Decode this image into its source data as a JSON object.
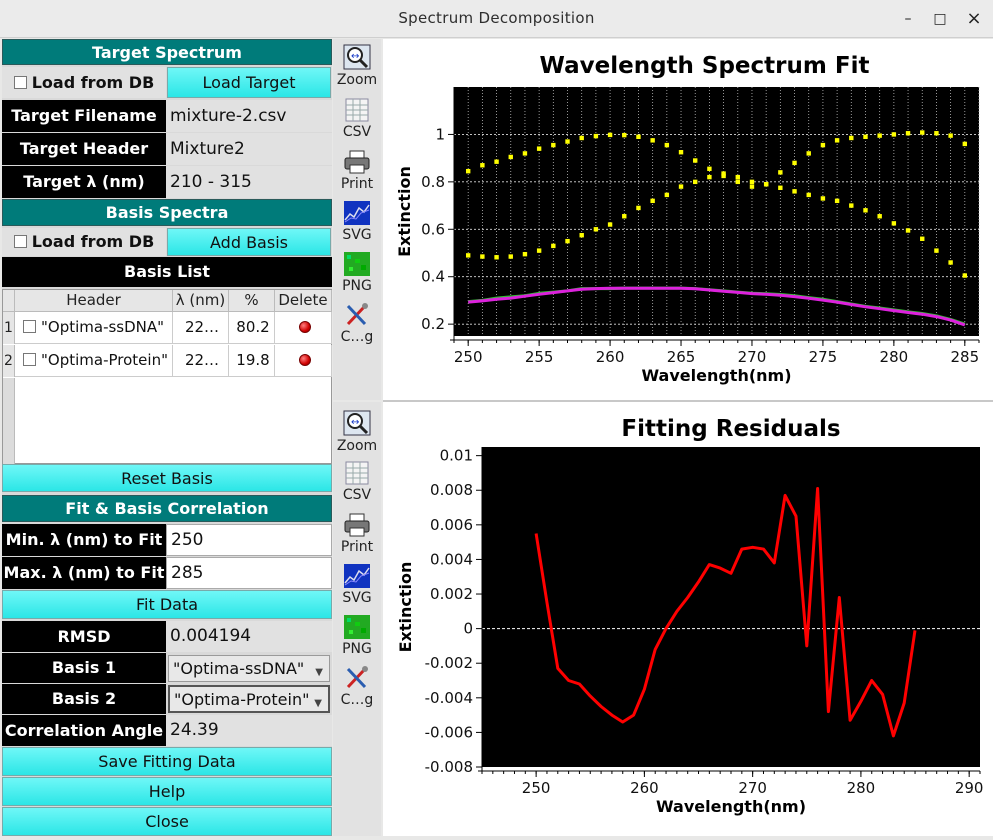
{
  "window": {
    "title": "Spectrum Decomposition",
    "minimize": "–",
    "maximize": "□",
    "close": "×"
  },
  "target": {
    "section_title": "Target Spectrum",
    "load_db_label": "Load from DB",
    "load_target_label": "Load Target",
    "filename_label": "Target Filename",
    "filename_value": "mixture-2.csv",
    "header_label": "Target Header",
    "header_value": "Mixture2",
    "range_label": "Target λ (nm)",
    "range_value": "210 - 315"
  },
  "basis": {
    "section_title": "Basis Spectra",
    "load_db_label": "Load from DB",
    "add_basis_label": "Add Basis",
    "list_title": "Basis List",
    "columns": [
      "Header",
      "λ (nm)",
      "%",
      "Delete"
    ],
    "rows": [
      {
        "index": "1",
        "header": "\"Optima-ssDNA\"",
        "range": "22…",
        "percent": "80.2"
      },
      {
        "index": "2",
        "header": "\"Optima-Protein\"",
        "range": "22…",
        "percent": "19.8"
      }
    ],
    "reset_label": "Reset Basis"
  },
  "fit": {
    "section_title": "Fit & Basis Correlation",
    "min_label": "Min. λ (nm) to Fit",
    "min_value": "250",
    "max_label": "Max. λ (nm) to Fit",
    "max_value": "285",
    "fit_button": "Fit Data",
    "rmsd_label": "RMSD",
    "rmsd_value": "0.004194",
    "basis1_label": "Basis 1",
    "basis1_value": "\"Optima-ssDNA\"",
    "basis2_label": "Basis 2",
    "basis2_value": "\"Optima-Protein\"",
    "angle_label": "Correlation Angle",
    "angle_value": "24.39",
    "save_button": "Save Fitting Data",
    "help_button": "Help",
    "close_button": "Close"
  },
  "toolbar": {
    "zoom": "Zoom",
    "csv": "CSV",
    "print": "Print",
    "svg": "SVG",
    "png": "PNG",
    "config": "C…g"
  },
  "colors": {
    "teal": "#007b7a",
    "cyan": "#33e8e8",
    "fit_line": "#dd22dd",
    "target_line": "#33bb33",
    "basis_points": "#ffff00",
    "residual_line": "#ff0000"
  },
  "chart_data": [
    {
      "type": "line",
      "title": "Wavelength Spectrum Fit",
      "xlabel": "Wavelength(nm)",
      "ylabel": "Extinction",
      "xlim": [
        249,
        286
      ],
      "ylim": [
        0.15,
        1.2
      ],
      "xticks": [
        250,
        255,
        260,
        265,
        270,
        275,
        280,
        285
      ],
      "yticks": [
        0.2,
        0.4,
        0.6,
        0.8,
        1
      ],
      "grid": true,
      "x": [
        250,
        251,
        252,
        253,
        254,
        255,
        256,
        257,
        258,
        259,
        260,
        261,
        262,
        263,
        264,
        265,
        266,
        267,
        268,
        269,
        270,
        271,
        272,
        273,
        274,
        275,
        276,
        277,
        278,
        279,
        280,
        281,
        282,
        283,
        284,
        285
      ],
      "series": [
        {
          "values": [
            0.845,
            0.87,
            0.885,
            0.905,
            0.92,
            0.94,
            0.955,
            0.97,
            0.985,
            0.993,
            0.998,
            0.997,
            0.99,
            0.975,
            0.955,
            0.925,
            0.89,
            0.855,
            0.825,
            0.8,
            0.78,
            0.79,
            0.84,
            0.88,
            0.92,
            0.955,
            0.975,
            0.985,
            0.99,
            0.995,
            1.0,
            1.005,
            1.008,
            1.005,
            0.995,
            0.96
          ],
          "style": "points"
        },
        {
          "values": [
            0.49,
            0.485,
            0.482,
            0.485,
            0.495,
            0.51,
            0.53,
            0.55,
            0.575,
            0.6,
            0.62,
            0.655,
            0.69,
            0.72,
            0.745,
            0.78,
            0.8,
            0.82,
            0.835,
            0.82,
            0.8,
            0.79,
            0.775,
            0.76,
            0.745,
            0.73,
            0.72,
            0.7,
            0.68,
            0.655,
            0.625,
            0.595,
            0.56,
            0.51,
            0.46,
            0.405
          ],
          "style": "points"
        },
        {
          "values": [
            0.295,
            0.3,
            0.31,
            0.315,
            0.32,
            0.33,
            0.335,
            0.34,
            0.35,
            0.35,
            0.35,
            0.352,
            0.352,
            0.352,
            0.352,
            0.352,
            0.35,
            0.345,
            0.34,
            0.335,
            0.33,
            0.328,
            0.325,
            0.32,
            0.312,
            0.305,
            0.295,
            0.285,
            0.275,
            0.268,
            0.26,
            0.252,
            0.245,
            0.235,
            0.22,
            0.2
          ],
          "style": "line",
          "color": "#33bb33"
        },
        {
          "values": [
            0.293,
            0.298,
            0.305,
            0.31,
            0.318,
            0.326,
            0.333,
            0.34,
            0.347,
            0.35,
            0.351,
            0.351,
            0.351,
            0.351,
            0.351,
            0.351,
            0.349,
            0.344,
            0.339,
            0.334,
            0.329,
            0.326,
            0.322,
            0.316,
            0.309,
            0.301,
            0.293,
            0.283,
            0.273,
            0.265,
            0.257,
            0.249,
            0.242,
            0.232,
            0.217,
            0.197
          ],
          "style": "line",
          "color": "#dd22dd"
        }
      ]
    },
    {
      "type": "line",
      "title": "Fitting Residuals",
      "xlabel": "Wavelength(nm)",
      "ylabel": "Extinction",
      "xlim": [
        245,
        291
      ],
      "ylim": [
        -0.008,
        0.0105
      ],
      "xticks": [
        250,
        260,
        270,
        280,
        290
      ],
      "yticks": [
        -0.008,
        -0.006,
        -0.004,
        -0.002,
        0,
        0.002,
        0.004,
        0.006,
        0.008,
        0.01
      ],
      "ytick_labels": [
        "-0.008",
        "-0.006",
        "-0.004",
        "-0.002",
        "0",
        "0.002",
        "0.004",
        "0.006",
        "0.008",
        "0.01"
      ],
      "zero_line": true,
      "x": [
        250,
        251,
        252,
        253,
        254,
        255,
        256,
        257,
        258,
        259,
        260,
        261,
        262,
        263,
        264,
        265,
        266,
        267,
        268,
        269,
        270,
        271,
        272,
        273,
        274,
        275,
        276,
        277,
        278,
        279,
        280,
        281,
        282,
        283,
        284,
        285
      ],
      "series": [
        {
          "values": [
            0.0055,
            0.0015,
            -0.0023,
            -0.003,
            -0.0032,
            -0.0039,
            -0.0045,
            -0.005,
            -0.0054,
            -0.005,
            -0.0035,
            -0.0012,
            0.0,
            0.001,
            0.0018,
            0.0027,
            0.0037,
            0.0035,
            0.0032,
            0.0046,
            0.0047,
            0.0046,
            0.0038,
            0.0077,
            0.0065,
            -0.001,
            0.0081,
            -0.0048,
            0.0018,
            -0.0053,
            -0.0042,
            -0.003,
            -0.0038,
            -0.0062,
            -0.0043,
            -0.0001
          ],
          "color": "#ff0000"
        }
      ]
    }
  ]
}
